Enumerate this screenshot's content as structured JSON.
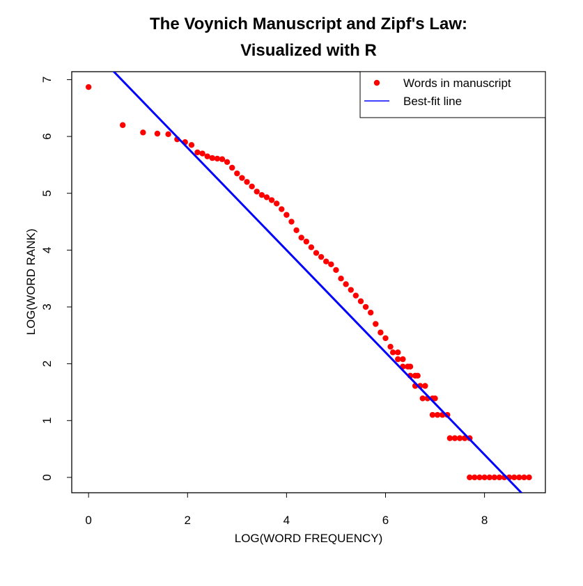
{
  "chart_data": {
    "type": "scatter",
    "title": [
      "The Voynich Manuscript and Zipf's Law:",
      "Visualized with R"
    ],
    "x_label": "LOG(WORD FREQUENCY)",
    "y_label": "LOG(WORD RANK)",
    "xlim": [
      -0.34,
      9.23
    ],
    "ylim": [
      -0.27,
      7.14
    ],
    "xticks": [
      0,
      2,
      4,
      6,
      8
    ],
    "yticks": [
      0,
      1,
      2,
      3,
      4,
      5,
      6,
      7
    ],
    "legend": "topright",
    "series": [
      {
        "name": "Words in manuscript",
        "color": "#ff0000",
        "x": [
          0,
          0.69,
          1.1,
          1.39,
          1.61,
          1.79,
          1.95,
          2.08,
          2.2,
          2.3,
          2.4,
          2.5,
          2.6,
          2.7,
          2.8,
          2.9,
          3.0,
          3.1,
          3.2,
          3.3,
          3.4,
          3.5,
          3.6,
          3.7,
          3.8,
          3.9,
          4.0,
          4.1,
          4.2,
          4.3,
          4.4,
          4.5,
          4.6,
          4.7,
          4.8,
          4.9,
          5.0,
          5.1,
          5.2,
          5.3,
          5.4,
          5.5,
          5.6,
          5.7,
          5.8,
          5.9,
          6.0,
          6.1,
          6.15,
          6.25,
          6.25,
          6.35,
          6.35,
          6.45,
          6.5,
          6.5,
          6.6,
          6.65,
          6.6,
          6.7,
          6.8,
          6.75,
          6.85,
          6.95,
          7.0,
          6.95,
          7.05,
          7.15,
          7.25,
          7.3,
          7.4,
          7.5,
          7.6,
          7.7,
          7.7,
          7.8,
          7.9,
          8.0,
          8.1,
          8.2,
          8.3,
          8.4,
          8.5,
          8.6,
          8.7,
          8.8,
          8.9
        ],
        "y": [
          6.87,
          6.2,
          6.07,
          6.05,
          6.04,
          5.95,
          5.9,
          5.85,
          5.72,
          5.7,
          5.65,
          5.62,
          5.61,
          5.6,
          5.55,
          5.45,
          5.35,
          5.27,
          5.2,
          5.12,
          5.03,
          4.97,
          4.93,
          4.88,
          4.82,
          4.72,
          4.62,
          4.5,
          4.35,
          4.22,
          4.15,
          4.05,
          3.95,
          3.88,
          3.8,
          3.75,
          3.65,
          3.5,
          3.4,
          3.3,
          3.2,
          3.1,
          3.0,
          2.9,
          2.7,
          2.55,
          2.45,
          2.3,
          2.2,
          2.2,
          2.08,
          2.08,
          1.95,
          1.95,
          1.95,
          1.79,
          1.79,
          1.79,
          1.61,
          1.61,
          1.61,
          1.39,
          1.39,
          1.39,
          1.39,
          1.1,
          1.1,
          1.1,
          1.1,
          0.69,
          0.69,
          0.69,
          0.69,
          0.69,
          0,
          0,
          0,
          0,
          0,
          0,
          0,
          0,
          0,
          0,
          0,
          0,
          0
        ]
      }
    ],
    "fit": {
      "name": "Best-fit line",
      "color": "#0000ff",
      "intercept": 7.6,
      "slope": -0.9
    }
  }
}
